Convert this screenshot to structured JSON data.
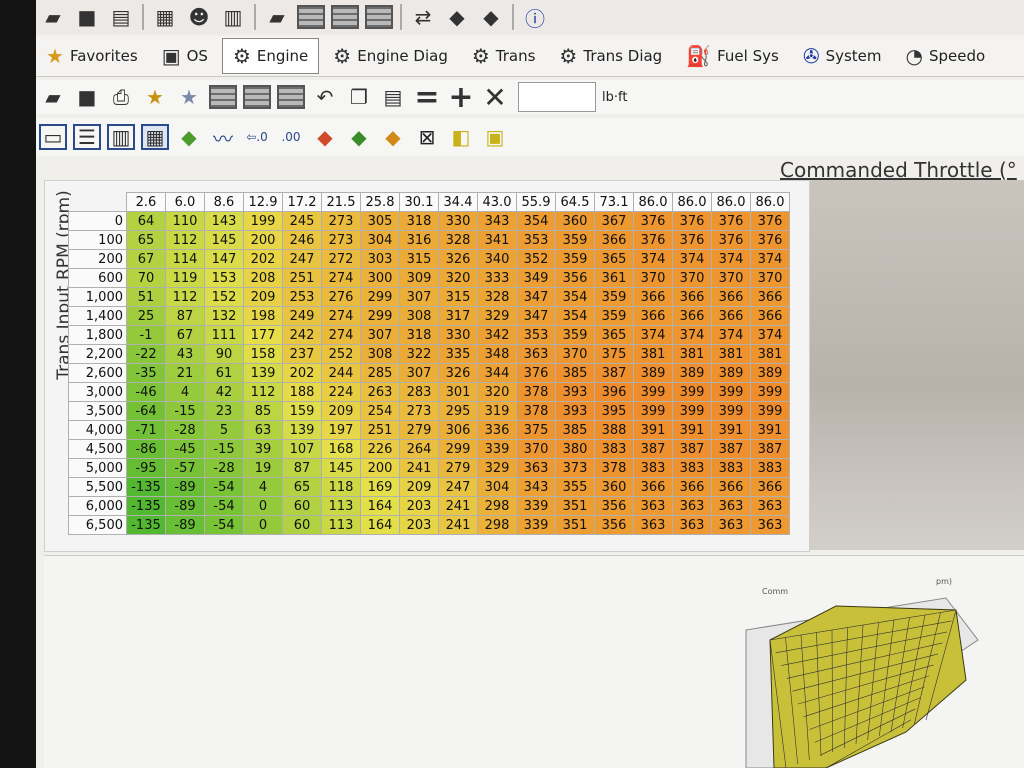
{
  "toolbar_top": {
    "icons": [
      "open-folder-icon",
      "save-icon",
      "save-as-icon",
      "file-info-icon",
      "user-icon",
      "file-settings-icon",
      "folder-icon",
      "grid-icon",
      "grid-icon",
      "grid-icon",
      "swap-icon",
      "chip-icon",
      "chip-icon",
      "info-icon"
    ]
  },
  "tabs": [
    {
      "label": "Favorites",
      "icon": "star-icon",
      "selected": false
    },
    {
      "label": "OS",
      "icon": "chip-icon",
      "selected": false
    },
    {
      "label": "Engine",
      "icon": "engine-icon",
      "selected": true
    },
    {
      "label": "Engine Diag",
      "icon": "engine-diag-icon",
      "selected": false
    },
    {
      "label": "Trans",
      "icon": "gear-icon",
      "selected": false
    },
    {
      "label": "Trans Diag",
      "icon": "gear-icon",
      "selected": false
    },
    {
      "label": "Fuel Sys",
      "icon": "fuel-pump-icon",
      "selected": false
    },
    {
      "label": "System",
      "icon": "fan-icon",
      "selected": false
    },
    {
      "label": "Speedo",
      "icon": "speedometer-icon",
      "selected": false
    }
  ],
  "editor": {
    "unit_label": "lb·ft",
    "input_value": ""
  },
  "table": {
    "title": "Commanded Throttle (°",
    "row_axis_label": "Trans Input RPM (rpm)",
    "columns": [
      "2.6",
      "6.0",
      "8.6",
      "12.9",
      "17.2",
      "21.5",
      "25.8",
      "30.1",
      "34.4",
      "43.0",
      "55.9",
      "64.5",
      "73.1",
      "86.0",
      "86.0",
      "86.0",
      "86.0"
    ],
    "rows": [
      "0",
      "100",
      "200",
      "600",
      "1,000",
      "1,400",
      "1,800",
      "2,200",
      "2,600",
      "3,000",
      "3,500",
      "4,000",
      "4,500",
      "5,000",
      "5,500",
      "6,000",
      "6,500"
    ],
    "values": [
      [
        64,
        110,
        143,
        199,
        245,
        273,
        305,
        318,
        330,
        343,
        354,
        360,
        367,
        376,
        376,
        376,
        376
      ],
      [
        65,
        112,
        145,
        200,
        246,
        273,
        304,
        316,
        328,
        341,
        353,
        359,
        366,
        376,
        376,
        376,
        376
      ],
      [
        67,
        114,
        147,
        202,
        247,
        272,
        303,
        315,
        326,
        340,
        352,
        359,
        365,
        374,
        374,
        374,
        374
      ],
      [
        70,
        119,
        153,
        208,
        251,
        274,
        300,
        309,
        320,
        333,
        349,
        356,
        361,
        370,
        370,
        370,
        370
      ],
      [
        51,
        112,
        152,
        209,
        253,
        276,
        299,
        307,
        315,
        328,
        347,
        354,
        359,
        366,
        366,
        366,
        366
      ],
      [
        25,
        87,
        132,
        198,
        249,
        274,
        299,
        308,
        317,
        329,
        347,
        354,
        359,
        366,
        366,
        366,
        366
      ],
      [
        -1,
        67,
        111,
        177,
        242,
        274,
        307,
        318,
        330,
        342,
        353,
        359,
        365,
        374,
        374,
        374,
        374
      ],
      [
        -22,
        43,
        90,
        158,
        237,
        252,
        308,
        322,
        335,
        348,
        363,
        370,
        375,
        381,
        381,
        381,
        381
      ],
      [
        -35,
        21,
        61,
        139,
        202,
        244,
        285,
        307,
        326,
        344,
        376,
        385,
        387,
        389,
        389,
        389,
        389
      ],
      [
        -46,
        4,
        42,
        112,
        188,
        224,
        263,
        283,
        301,
        320,
        378,
        393,
        396,
        399,
        399,
        399,
        399
      ],
      [
        -64,
        -15,
        23,
        85,
        159,
        209,
        254,
        273,
        295,
        319,
        378,
        393,
        395,
        399,
        399,
        399,
        399
      ],
      [
        -71,
        -28,
        5,
        63,
        139,
        197,
        251,
        279,
        306,
        336,
        375,
        385,
        388,
        391,
        391,
        391,
        391
      ],
      [
        -86,
        -45,
        -15,
        39,
        107,
        168,
        226,
        264,
        299,
        339,
        370,
        380,
        383,
        387,
        387,
        387,
        387
      ],
      [
        -95,
        -57,
        -28,
        19,
        87,
        145,
        200,
        241,
        279,
        329,
        363,
        373,
        378,
        383,
        383,
        383,
        383
      ],
      [
        -135,
        -89,
        -54,
        4,
        65,
        118,
        169,
        209,
        247,
        304,
        343,
        355,
        360,
        366,
        366,
        366,
        366
      ],
      [
        -135,
        -89,
        -54,
        0,
        60,
        113,
        164,
        203,
        241,
        298,
        339,
        351,
        356,
        363,
        363,
        363,
        363
      ],
      [
        -135,
        -89,
        -54,
        0,
        60,
        113,
        164,
        203,
        241,
        298,
        339,
        351,
        356,
        363,
        363,
        363,
        363
      ]
    ]
  },
  "plot3d": {
    "axis_label_left": "Comm",
    "axis_label_right": "pm)"
  },
  "colors": {
    "low": "#52b830",
    "mid": "#e6e04a",
    "high": "#ef8c2c"
  }
}
